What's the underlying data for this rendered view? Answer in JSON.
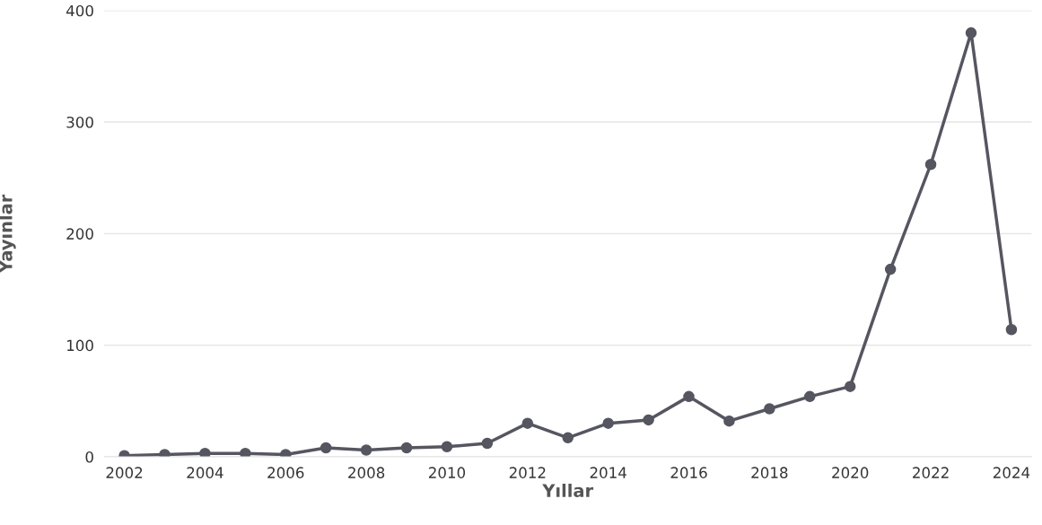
{
  "chart_data": {
    "type": "line",
    "xlabel": "Yıllar",
    "ylabel": "Yayınlar",
    "x": [
      2002,
      2003,
      2004,
      2005,
      2006,
      2007,
      2008,
      2009,
      2010,
      2011,
      2012,
      2013,
      2014,
      2015,
      2016,
      2017,
      2018,
      2019,
      2020,
      2021,
      2022,
      2023,
      2024
    ],
    "series": [
      {
        "color": "#555660",
        "values": [
          1,
          2,
          3,
          3,
          2,
          8,
          6,
          8,
          9,
          12,
          30,
          17,
          30,
          33,
          54,
          32,
          43,
          54,
          63,
          168,
          262,
          380,
          114
        ]
      }
    ],
    "xlim": [
      2001.5,
      2024.5
    ],
    "xticks": [
      2002,
      2004,
      2006,
      2008,
      2010,
      2012,
      2014,
      2016,
      2018,
      2020,
      2022,
      2024
    ],
    "ylim": [
      0,
      400
    ],
    "yticks": [
      0,
      100,
      200,
      300,
      400
    ],
    "grid": "y",
    "marker": "circle",
    "line_style": "solid",
    "legend": false
  }
}
